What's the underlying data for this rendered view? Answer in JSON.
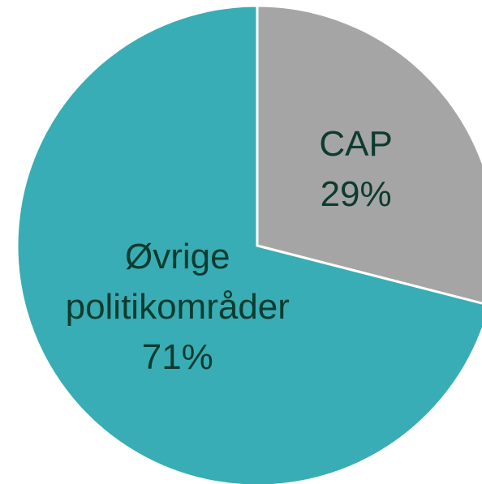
{
  "chart_data": {
    "type": "pie",
    "categories": [
      "CAP",
      "Øvrige politikområder"
    ],
    "values": [
      29,
      71
    ],
    "value_labels": [
      "29%",
      "71%"
    ],
    "colors": [
      "#a5a5a5",
      "#38adb5"
    ]
  }
}
